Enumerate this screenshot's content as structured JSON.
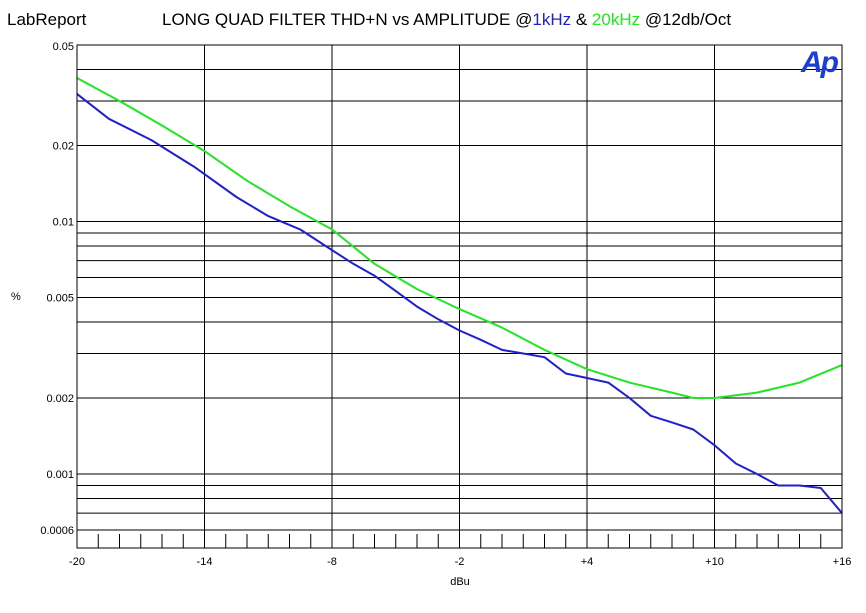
{
  "header": {
    "app_name": "LabReport",
    "title_prefix": "LONG QUAD FILTER THD+N vs AMPLITUDE @",
    "title_series1": "1kHz",
    "title_amp": " & ",
    "title_series2": "20kHz",
    "title_suffix": " @12db/Oct",
    "logo_text": "Ap"
  },
  "colors": {
    "series_1khz": "#1f1fd0",
    "series_20khz": "#22e622",
    "grid": "#000000",
    "logo": "#1a3fd8"
  },
  "chart_data": {
    "type": "line",
    "title": "LONG QUAD FILTER THD+N vs AMPLITUDE @1kHz & 20kHz @12db/Oct",
    "xlabel": "dBu",
    "ylabel": "%",
    "x_scale": "linear",
    "y_scale": "log",
    "xlim": [
      -20,
      16
    ],
    "ylim": [
      0.0006,
      0.05
    ],
    "grid": true,
    "x_ticks": [
      -20,
      -14,
      -8,
      -2,
      4,
      10,
      16
    ],
    "x_tick_labels": [
      "-20",
      "-14",
      "-8",
      "-2",
      "+4",
      "+10",
      "+16"
    ],
    "y_tick_values": [
      0.05,
      0.02,
      0.01,
      0.005,
      0.002,
      0.001,
      0.0006
    ],
    "y_tick_labels": [
      "0.05",
      "0.02",
      "0.01",
      "0.005",
      "0.002",
      "0.001",
      "0.0006"
    ],
    "series": [
      {
        "name": "1kHz",
        "x": [
          -20,
          -18.5,
          -16.5,
          -14.5,
          -12.5,
          -11,
          -9.5,
          -8,
          -7,
          -6,
          -5,
          -4,
          -3,
          -2,
          -1,
          0,
          1,
          2,
          3,
          4,
          5,
          6,
          7,
          8,
          9,
          10,
          11,
          12,
          13,
          14,
          15,
          16
        ],
        "y": [
          0.032,
          0.0255,
          0.021,
          0.0165,
          0.0125,
          0.0105,
          0.0093,
          0.0077,
          0.0068,
          0.0061,
          0.0053,
          0.0046,
          0.0041,
          0.0037,
          0.0034,
          0.0031,
          0.003,
          0.0029,
          0.0025,
          0.0024,
          0.0023,
          0.002,
          0.0017,
          0.0016,
          0.0015,
          0.0013,
          0.0011,
          0.001,
          0.0009,
          0.0009,
          0.00088,
          0.0007
        ]
      },
      {
        "name": "20kHz",
        "x": [
          -20,
          -18,
          -16,
          -14,
          -12,
          -10,
          -8,
          -6,
          -4,
          -2,
          0,
          2,
          4,
          6,
          8,
          9,
          10,
          12,
          14,
          16
        ],
        "y": [
          0.037,
          0.03,
          0.024,
          0.019,
          0.0145,
          0.0115,
          0.0093,
          0.0068,
          0.0054,
          0.0045,
          0.0038,
          0.0031,
          0.0026,
          0.0023,
          0.0021,
          0.002,
          0.002,
          0.0021,
          0.0023,
          0.0027
        ]
      }
    ]
  }
}
